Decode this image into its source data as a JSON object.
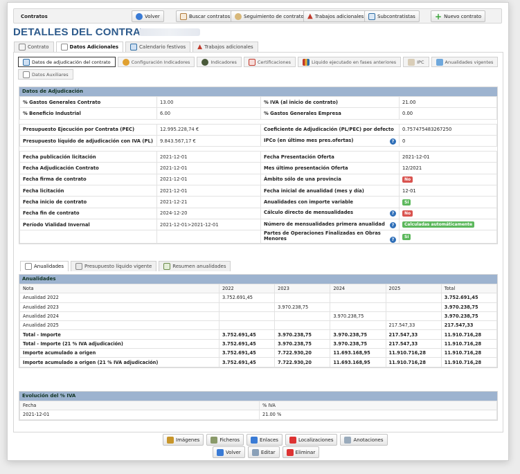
{
  "topbar": {
    "label": "Contratos",
    "buttons": [
      {
        "label": "Volver",
        "icon": "back-arrow-icon",
        "color": "#3a7bd5"
      },
      {
        "label": "Buscar contratos",
        "icon": "search-list-icon",
        "color": "#b07b3c"
      },
      {
        "label": "Seguimiento de contratos",
        "icon": "tracking-icon",
        "color": "#d8b87a"
      },
      {
        "label": "Trabajos adicionales",
        "icon": "warning-icon",
        "color": "#c0392b"
      },
      {
        "label": "Subcontratistas",
        "icon": "subcontractor-icon",
        "color": "#2e6da4"
      },
      {
        "label": "Nuevo contrato",
        "icon": "plus-icon",
        "color": "#3aa53a"
      }
    ]
  },
  "title": "DETALLES DEL CONTRATO",
  "main_tabs": [
    {
      "label": "Contrato",
      "icon": "contract-icon"
    },
    {
      "label": "Datos Adicionales",
      "icon": "document-icon"
    },
    {
      "label": "Calendario festivos",
      "icon": "calendar-icon"
    },
    {
      "label": "Trabajos adicionales",
      "icon": "warning-icon"
    }
  ],
  "sub_tabs": [
    {
      "label": "Datos de adjudicación del contrato",
      "icon": "award-icon"
    },
    {
      "label": "Configuración Indicadores",
      "icon": "gear-icon"
    },
    {
      "label": "Indicadores",
      "icon": "indicator-icon"
    },
    {
      "label": "Certificaciones",
      "icon": "certificate-icon"
    },
    {
      "label": "Liquido ejecutado en fases anteriores",
      "icon": "bar-chart-icon"
    },
    {
      "label": "IPC",
      "icon": "ipc-icon"
    },
    {
      "label": "Anualidades vigentes",
      "icon": "money-icon"
    },
    {
      "label": "Datos Auxiliares",
      "icon": "document-icon"
    }
  ],
  "adjudicacion": {
    "title": "Datos de Adjudicación",
    "group1": [
      {
        "k1": "% Gastos Generales Contrato",
        "v1": "13.00",
        "k2": "% IVA (al inicio de contrato)",
        "v2": "21.00"
      },
      {
        "k1": "% Beneficio Industrial",
        "v1": "6.00",
        "k2": "% Gastos Generales Empresa",
        "v2": "0.00"
      }
    ],
    "group2": [
      {
        "k1": "Presupuesto Ejecución por Contrata (PEC)",
        "v1": "12.995.228,74 €",
        "k2": "Coeficiente de Adjudicación (PL/PEC) por defecto",
        "v2": "0.757475483267250"
      },
      {
        "k1": "Presupuesto líquido de adjudicación con IVA (PL)",
        "v1": "9.843.567,17 €",
        "k2": "IPCo (en último mes pres.ofertas)",
        "v2": "0"
      }
    ],
    "group3": [
      {
        "k1": "Fecha publicación licitación",
        "v1": "2021-12-01",
        "k2": "Fecha Presentación Oferta",
        "v2": "2021-12-01"
      },
      {
        "k1": "Fecha Adjudicación Contrato",
        "v1": "2021-12-01",
        "k2": "Mes último presentación Oferta",
        "v2": "12/2021"
      },
      {
        "k1": "Fecha firma de contrato",
        "v1": "2021-12-01",
        "k2": "Ámbito sólo de una provincia",
        "v2": "No"
      },
      {
        "k1": "Fecha licitación",
        "v1": "2021-12-01",
        "k2": "Fecha inicial de anualidad (mes y día)",
        "v2": "12-01"
      },
      {
        "k1": "Fecha inicio de contrato",
        "v1": "2021-12-21",
        "k2": "Anualidades con importe variable",
        "v2": "Sí"
      },
      {
        "k1": "Fecha fin de contrato",
        "v1": "2024-12-20",
        "k2": "Cálculo directo de mensualidades",
        "v2": "No"
      },
      {
        "k1": "Período Vialidad Invernal",
        "v1": "2021-12-01>2021-12-01",
        "k2": "Número de mensualidades primera anualidad",
        "v2": "Calculadas automáticamente"
      },
      {
        "k1": "",
        "v1": "",
        "k2": "Partes de Operaciones Finalizadas en Obras Menores",
        "v2": "Sí"
      }
    ]
  },
  "an_tabs": [
    {
      "label": "Anualidades",
      "icon": "document-icon"
    },
    {
      "label": "Presupuesto líquido vigente",
      "icon": "budget-icon"
    },
    {
      "label": "Resumen anualidades",
      "icon": "summary-icon"
    }
  ],
  "anualidades": {
    "title": "Anualidades",
    "headers": [
      "Nota",
      "2022",
      "2023",
      "2024",
      "2025",
      "Total"
    ],
    "rows": [
      [
        "Anualidad 2022",
        "3.752.691,45",
        "",
        "",
        "",
        "3.752.691,45"
      ],
      [
        "Anualidad 2023",
        "",
        "3.970.238,75",
        "",
        "",
        "3.970.238,75"
      ],
      [
        "Anualidad 2024",
        "",
        "",
        "3.970.238,75",
        "",
        "3.970.238,75"
      ],
      [
        "Anualidad 2025",
        "",
        "",
        "",
        "217.547,33",
        "217.547,33"
      ],
      [
        "Total - Importe",
        "3.752.691,45",
        "3.970.238,75",
        "3.970.238,75",
        "217.547,33",
        "11.910.716,28"
      ],
      [
        "Total - Importe (21 % IVA adjudicación)",
        "3.752.691,45",
        "3.970.238,75",
        "3.970.238,75",
        "217.547,33",
        "11.910.716,28"
      ],
      [
        "Importe acumulado a origen",
        "3.752.691,45",
        "7.722.930,20",
        "11.693.168,95",
        "11.910.716,28",
        "11.910.716,28"
      ],
      [
        "Importe acumulado a origen (21 % IVA adjudicación)",
        "3.752.691,45",
        "7.722.930,20",
        "11.693.168,95",
        "11.910.716,28",
        "11.910.716,28"
      ]
    ]
  },
  "iva": {
    "title": "Evolución del % IVA",
    "headers": [
      "Fecha",
      "% IVA"
    ],
    "row": [
      "2021-12-01",
      "21.00 %"
    ]
  },
  "bottom1": [
    {
      "label": "Imágenes",
      "icon": "images-icon",
      "color": "#c8962a"
    },
    {
      "label": "Ficheros",
      "icon": "files-icon",
      "color": "#8a9a6a"
    },
    {
      "label": "Enlaces",
      "icon": "link-icon",
      "color": "#3a7bd5"
    },
    {
      "label": "Localizaciones",
      "icon": "location-pin-icon",
      "color": "#d33"
    },
    {
      "label": "Anotaciones",
      "icon": "notes-icon",
      "color": "#9ab"
    }
  ],
  "bottom2": [
    {
      "label": "Volver",
      "icon": "back-arrow-icon",
      "color": "#3a7bd5"
    },
    {
      "label": "Editar",
      "icon": "edit-icon",
      "color": "#8aa0b8"
    },
    {
      "label": "Eliminar",
      "icon": "delete-x-icon",
      "color": "#d33"
    }
  ]
}
